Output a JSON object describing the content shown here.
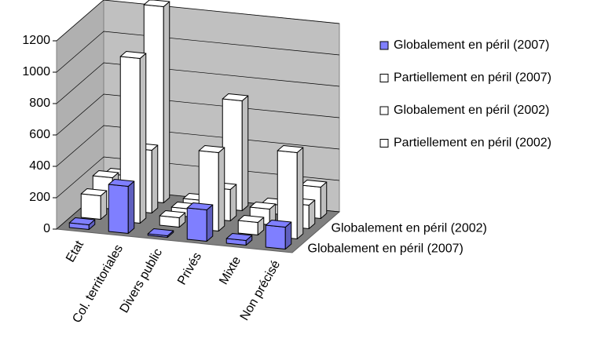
{
  "chart_data": {
    "type": "bar3d",
    "categories": [
      "Etat",
      "Col. territoriales",
      "Divers public",
      "Privés",
      "Mixte",
      "Non précisé"
    ],
    "series": [
      {
        "name": "Globalement en péril (2007)",
        "color": "#7f7fff",
        "values": [
          30,
          300,
          10,
          200,
          30,
          140
        ]
      },
      {
        "name": "Partiellement en péril (2007)",
        "color": "#ffffff",
        "values": [
          150,
          1050,
          60,
          500,
          80,
          550
        ]
      },
      {
        "name": "Globalement en péril (2002)",
        "color": "#ffffff",
        "values": [
          200,
          400,
          50,
          200,
          100,
          150
        ]
      },
      {
        "name": "Partiellement en péril (2002)",
        "color": "#ffffff",
        "values": [
          150,
          1250,
          40,
          700,
          60,
          200
        ]
      }
    ],
    "depth_labels": [
      "Globalement en péril (2007)",
      null,
      "Globalement en péril (2002)",
      null
    ],
    "ylim": [
      0,
      1200
    ],
    "yticks": [
      0,
      200,
      400,
      600,
      800,
      1000,
      1200
    ],
    "grid": true,
    "legend": "right"
  }
}
